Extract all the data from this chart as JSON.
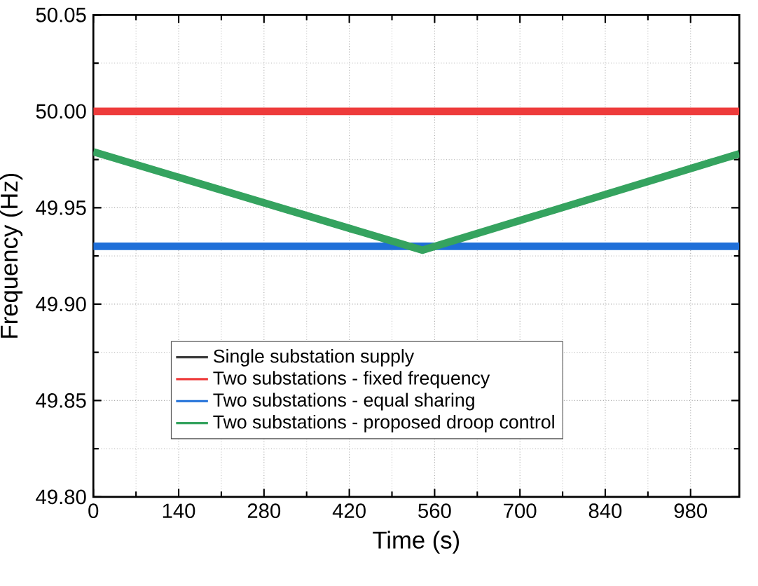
{
  "chart_data": {
    "type": "line",
    "xlabel": "Time (s)",
    "ylabel": "Frequency (Hz)",
    "xlim": [
      0,
      1060
    ],
    "ylim": [
      49.8,
      50.05
    ],
    "xticks": [
      0,
      140,
      280,
      420,
      560,
      700,
      840,
      980
    ],
    "yticks": [
      {
        "value": 49.8,
        "label": "49.80"
      },
      {
        "value": 49.85,
        "label": "49.85"
      },
      {
        "value": 49.9,
        "label": "49.90"
      },
      {
        "value": 49.95,
        "label": "49.95"
      },
      {
        "value": 50.0,
        "label": "50.00"
      },
      {
        "value": 50.05,
        "label": "50.05"
      }
    ],
    "grid": true,
    "legend": "bottom left",
    "series": [
      {
        "name": "Single substation supply",
        "color": "#3c3c3c",
        "values": [
          null,
          null
        ]
      },
      {
        "name": "Two substations - fixed frequency",
        "color": "#ee3b3b",
        "x": [
          0,
          1060
        ],
        "values": [
          50.0,
          50.0
        ]
      },
      {
        "name": "Two substations - equal sharing",
        "color": "#1f6fd8",
        "x": [
          0,
          1060
        ],
        "values": [
          49.93,
          49.93
        ]
      },
      {
        "name": "Two substations - proposed droop control",
        "color": "#35a35f",
        "x": [
          0,
          540,
          1060
        ],
        "values": [
          49.979,
          49.928,
          49.978
        ]
      }
    ]
  }
}
